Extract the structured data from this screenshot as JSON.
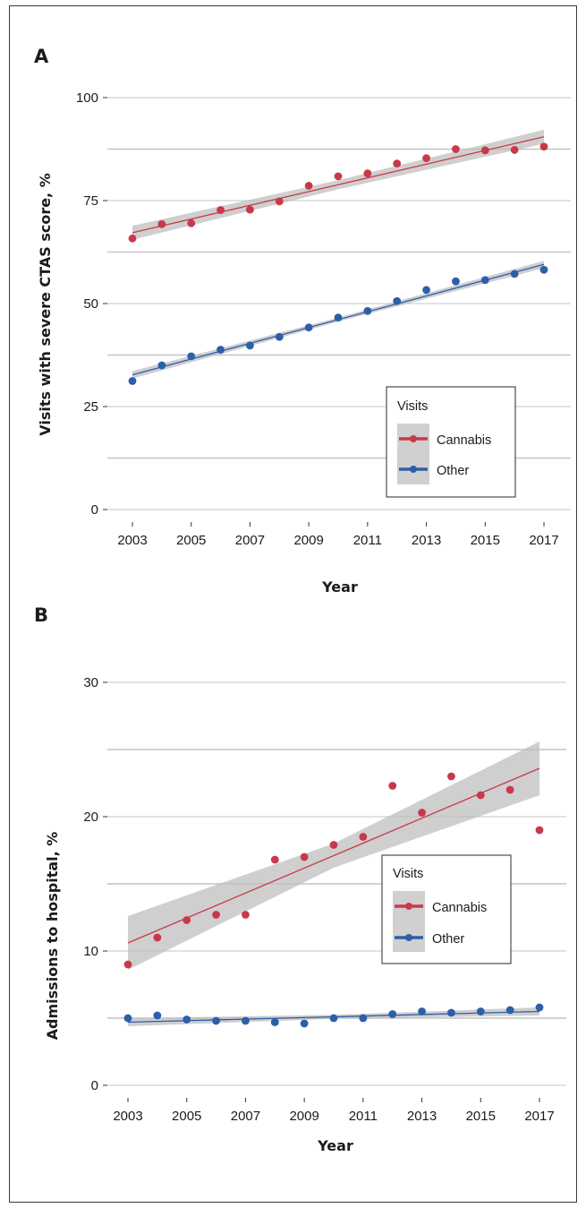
{
  "chart_data": [
    {
      "type": "scatter",
      "panel_label": "A",
      "title": "",
      "xlabel": "Year",
      "ylabel": "Visits with severe CTAS score, %",
      "xlim": [
        2003,
        2017
      ],
      "ylim": [
        0,
        100
      ],
      "x_ticks": [
        2003,
        2005,
        2007,
        2009,
        2011,
        2013,
        2015,
        2017
      ],
      "y_ticks": [
        0,
        25,
        50,
        75,
        100
      ],
      "grid": true,
      "fit": "linear",
      "confidence_band": true,
      "legend": {
        "title": "Visits",
        "position": "bottom-right"
      },
      "x": [
        2003,
        2004,
        2005,
        2006,
        2007,
        2008,
        2009,
        2010,
        2011,
        2012,
        2013,
        2014,
        2015,
        2016,
        2017
      ],
      "series": [
        {
          "name": "Cannabis",
          "color": "#c8394a",
          "values": [
            65.8,
            69.3,
            69.5,
            72.7,
            72.8,
            74.8,
            78.6,
            80.9,
            81.6,
            84.0,
            85.3,
            87.5,
            87.2,
            87.3,
            88.1
          ],
          "fit_line": [
            67.2,
            90.5
          ],
          "band_halfwidth": [
            1.7,
            1.1,
            1.7
          ]
        },
        {
          "name": "Other",
          "color": "#2c5fa8",
          "values": [
            31.2,
            35.0,
            37.2,
            38.8,
            39.8,
            41.9,
            44.2,
            46.6,
            48.2,
            50.6,
            53.3,
            55.4,
            55.7,
            57.2,
            58.2
          ],
          "fit_line": [
            32.7,
            59.5
          ],
          "band_halfwidth": [
            0.9,
            0.5,
            0.9
          ]
        }
      ]
    },
    {
      "type": "scatter",
      "panel_label": "B",
      "title": "",
      "xlabel": "Year",
      "ylabel": "Admissions to hospital, %",
      "xlim": [
        2003,
        2017
      ],
      "ylim": [
        0,
        30
      ],
      "x_ticks": [
        2003,
        2005,
        2007,
        2009,
        2011,
        2013,
        2015,
        2017
      ],
      "y_ticks": [
        0,
        10,
        20,
        30
      ],
      "grid": true,
      "fit": "linear",
      "confidence_band": true,
      "legend": {
        "title": "Visits",
        "position": "right"
      },
      "x": [
        2003,
        2004,
        2005,
        2006,
        2007,
        2008,
        2009,
        2010,
        2011,
        2012,
        2013,
        2014,
        2015,
        2016,
        2017
      ],
      "series": [
        {
          "name": "Cannabis",
          "color": "#c8394a",
          "values": [
            9.0,
            11.0,
            12.3,
            12.7,
            12.7,
            16.8,
            17.0,
            17.9,
            18.5,
            22.3,
            20.3,
            23.0,
            21.6,
            22.0,
            19.0
          ],
          "fit_line": [
            10.6,
            23.6
          ],
          "band_halfwidth": [
            2.0,
            0.9,
            2.0
          ]
        },
        {
          "name": "Other",
          "color": "#2c5fa8",
          "values": [
            5.0,
            5.2,
            4.9,
            4.8,
            4.8,
            4.7,
            4.6,
            5.0,
            5.0,
            5.3,
            5.5,
            5.4,
            5.5,
            5.6,
            5.8
          ],
          "fit_line": [
            4.7,
            5.5
          ],
          "band_halfwidth": [
            0.3,
            0.15,
            0.3
          ]
        }
      ]
    }
  ]
}
